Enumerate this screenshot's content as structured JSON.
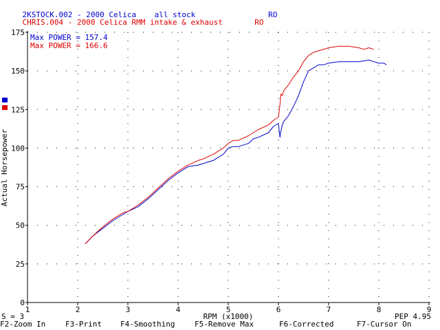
{
  "header": {
    "line1": {
      "file": "2KSTOCK.002",
      "desc": "2000 Celica",
      "note": "all stock",
      "code": "RO",
      "color": "#0000cc"
    },
    "line2": {
      "file": "CHRIS.004",
      "desc": "2000 Celica RMM intake & exhaust",
      "code": "RO",
      "color": "#dd0000"
    }
  },
  "annotations": {
    "max_blue": "Max POWER = 157.4",
    "max_red": "Max POWER = 166.6",
    "s_value": "S = 3",
    "pep": "PEP 4.95"
  },
  "function_keys": [
    {
      "label": "F2-Zoom In"
    },
    {
      "label": "F3-Print"
    },
    {
      "label": "F4-Smoothing"
    },
    {
      "label": "F5-Remove Max"
    },
    {
      "label": "F6-Corrected"
    },
    {
      "label": "F7-Cursor On"
    }
  ],
  "chart_data": {
    "type": "line",
    "xlabel": "RPM (x1000)",
    "ylabel": "Actual Horsepower",
    "xlim": [
      1,
      9
    ],
    "ylim": [
      0,
      175
    ],
    "xticks": [
      1,
      2,
      3,
      4,
      5,
      6,
      7,
      8,
      9
    ],
    "yticks": [
      0,
      25,
      50,
      75,
      100,
      125,
      150,
      175
    ],
    "grid": "dotted",
    "legend": "left-edge color squares",
    "series": [
      {
        "color": "#0000cc",
        "x": [
          2.15,
          2.3,
          2.5,
          2.7,
          2.9,
          3.0,
          3.2,
          3.4,
          3.6,
          3.8,
          4.0,
          4.2,
          4.4,
          4.5,
          4.7,
          4.9,
          5.0,
          5.1,
          5.2,
          5.4,
          5.5,
          5.6,
          5.8,
          5.9,
          6.0,
          6.03,
          6.05,
          6.08,
          6.1,
          6.2,
          6.3,
          6.4,
          6.5,
          6.6,
          6.7,
          6.8,
          6.9,
          7.0,
          7.2,
          7.4,
          7.6,
          7.8,
          7.9,
          8.0,
          8.1,
          8.15
        ],
        "values": [
          38,
          43,
          48,
          53,
          57,
          59,
          62,
          67,
          73,
          79,
          84,
          88,
          89,
          90,
          92,
          96,
          100,
          101,
          101,
          103,
          106,
          107,
          110,
          114,
          116,
          107,
          111,
          115,
          117,
          121,
          127,
          134,
          143,
          150,
          152,
          154,
          154,
          155,
          156,
          156,
          156,
          157,
          156,
          155,
          155,
          154
        ]
      },
      {
        "color": "#dd0000",
        "x": [
          2.15,
          2.3,
          2.5,
          2.7,
          2.9,
          3.0,
          3.2,
          3.4,
          3.6,
          3.8,
          4.0,
          4.2,
          4.4,
          4.5,
          4.7,
          4.9,
          5.0,
          5.1,
          5.2,
          5.4,
          5.5,
          5.6,
          5.8,
          5.9,
          6.0,
          6.03,
          6.05,
          6.08,
          6.1,
          6.2,
          6.3,
          6.4,
          6.5,
          6.6,
          6.7,
          6.8,
          7.0,
          7.2,
          7.4,
          7.6,
          7.7,
          7.8,
          7.9
        ],
        "values": [
          38,
          43,
          49,
          54,
          58,
          59,
          63,
          68,
          74,
          80,
          85,
          89,
          92,
          93,
          96,
          100,
          103,
          105,
          105,
          108,
          110,
          112,
          115,
          118,
          120,
          128,
          135,
          134,
          137,
          141,
          146,
          150,
          156,
          160,
          162,
          163,
          165,
          166,
          166,
          165,
          164,
          165,
          164
        ]
      }
    ]
  }
}
